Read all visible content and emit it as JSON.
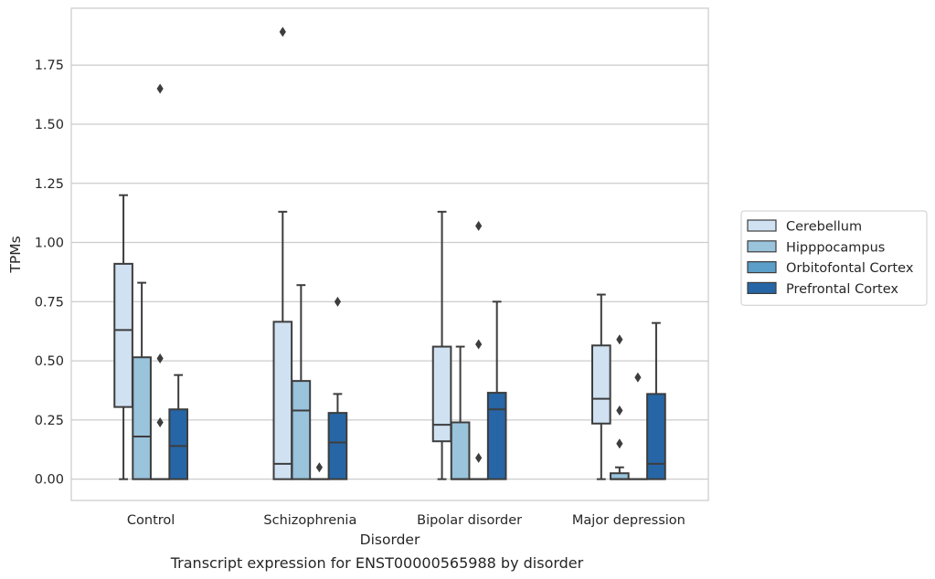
{
  "caption": "Transcript expression for ENST00000565988 by disorder",
  "chart_data": {
    "type": "box",
    "xlabel": "Disorder",
    "ylabel": "TPMs",
    "ylim": [
      -0.09,
      1.99
    ],
    "yticks": [
      0.0,
      0.25,
      0.5,
      0.75,
      1.0,
      1.25,
      1.5,
      1.75
    ],
    "ytick_labels": [
      "0.00",
      "0.25",
      "0.50",
      "0.75",
      "1.00",
      "1.25",
      "1.50",
      "1.75"
    ],
    "grid": "horizontal",
    "legend_position": "right, outside plot",
    "categories": [
      "Control",
      "Schizophrenia",
      "Bipolar disorder",
      "Major depression"
    ],
    "series": [
      {
        "name": "Cerebellum",
        "color": "#d0e1f2",
        "boxes": [
          {
            "whislo": 0.0,
            "q1": 0.305,
            "med": 0.63,
            "q3": 0.91,
            "whishi": 1.2,
            "fliers": []
          },
          {
            "whislo": 0.0,
            "q1": 0.0,
            "med": 0.065,
            "q3": 0.665,
            "whishi": 1.13,
            "fliers": [
              1.89
            ]
          },
          {
            "whislo": 0.0,
            "q1": 0.16,
            "med": 0.23,
            "q3": 0.56,
            "whishi": 1.13,
            "fliers": []
          },
          {
            "whislo": 0.0,
            "q1": 0.235,
            "med": 0.34,
            "q3": 0.565,
            "whishi": 0.78,
            "fliers": []
          }
        ]
      },
      {
        "name": "Hipppocampus",
        "color": "#9ac3dc",
        "boxes": [
          {
            "whislo": 0.0,
            "q1": 0.0,
            "med": 0.18,
            "q3": 0.515,
            "whishi": 0.83,
            "fliers": []
          },
          {
            "whislo": 0.0,
            "q1": 0.0,
            "med": 0.29,
            "q3": 0.415,
            "whishi": 0.82,
            "fliers": []
          },
          {
            "whislo": 0.0,
            "q1": 0.0,
            "med": 0.0,
            "q3": 0.24,
            "whishi": 0.56,
            "fliers": []
          },
          {
            "whislo": 0.0,
            "q1": 0.0,
            "med": 0.0,
            "q3": 0.025,
            "whishi": 0.05,
            "fliers": [
              0.15,
              0.29,
              0.59
            ]
          }
        ]
      },
      {
        "name": "Orbitofontal Cortex",
        "color": "#5a9ec9",
        "boxes": [
          {
            "whislo": 0.0,
            "q1": 0.0,
            "med": 0.0,
            "q3": 0.0,
            "whishi": 0.0,
            "fliers": [
              0.24,
              0.51,
              1.65
            ]
          },
          {
            "whislo": 0.0,
            "q1": 0.0,
            "med": 0.0,
            "q3": 0.0,
            "whishi": 0.0,
            "fliers": [
              0.05
            ]
          },
          {
            "whislo": 0.0,
            "q1": 0.0,
            "med": 0.0,
            "q3": 0.0,
            "whishi": 0.0,
            "fliers": [
              0.09,
              0.57,
              1.07
            ]
          },
          {
            "whislo": 0.0,
            "q1": 0.0,
            "med": 0.0,
            "q3": 0.0,
            "whishi": 0.0,
            "fliers": [
              0.43
            ]
          }
        ]
      },
      {
        "name": "Prefrontal Cortex",
        "color": "#2666a6",
        "boxes": [
          {
            "whislo": 0.0,
            "q1": 0.0,
            "med": 0.14,
            "q3": 0.295,
            "whishi": 0.44,
            "fliers": []
          },
          {
            "whislo": 0.0,
            "q1": 0.0,
            "med": 0.155,
            "q3": 0.28,
            "whishi": 0.36,
            "fliers": [
              0.75
            ]
          },
          {
            "whislo": 0.0,
            "q1": 0.0,
            "med": 0.295,
            "q3": 0.365,
            "whishi": 0.75,
            "fliers": []
          },
          {
            "whislo": 0.0,
            "q1": 0.0,
            "med": 0.065,
            "q3": 0.36,
            "whishi": 0.66,
            "fliers": []
          }
        ]
      }
    ]
  }
}
